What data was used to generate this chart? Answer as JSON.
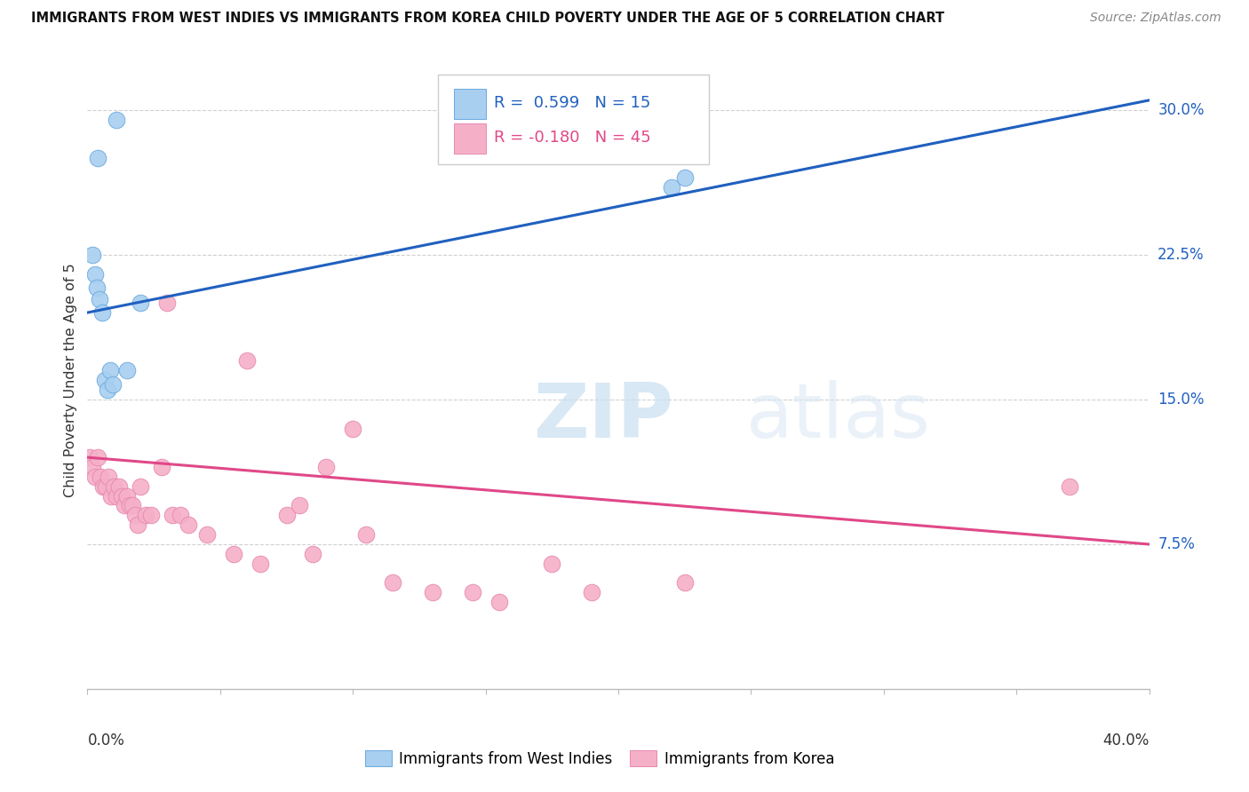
{
  "title": "IMMIGRANTS FROM WEST INDIES VS IMMIGRANTS FROM KOREA CHILD POVERTY UNDER THE AGE OF 5 CORRELATION CHART",
  "source": "Source: ZipAtlas.com",
  "ylabel": "Child Poverty Under the Age of 5",
  "ytick_vals": [
    7.5,
    15.0,
    22.5,
    30.0
  ],
  "ytick_labels": [
    "7.5%",
    "15.0%",
    "22.5%",
    "30.0%"
  ],
  "xlim": [
    0.0,
    40.0
  ],
  "ylim": [
    0.0,
    32.0
  ],
  "blue_label": "Immigrants from West Indies",
  "pink_label": "Immigrants from Korea",
  "blue_R": "0.599",
  "blue_N": "15",
  "pink_R": "-0.180",
  "pink_N": "45",
  "blue_color": "#a8cff0",
  "pink_color": "#f5b0c8",
  "blue_edge_color": "#6aaade",
  "pink_edge_color": "#e888b0",
  "blue_line_color": "#2060c0",
  "pink_line_color": "#e04888",
  "legend_text_blue": "#2060c0",
  "legend_text_pink": "#e04888",
  "blue_x": [
    0.4,
    1.1,
    0.2,
    0.3,
    0.35,
    0.45,
    0.55,
    0.65,
    0.75,
    0.85,
    0.95,
    1.5,
    2.0,
    22.0,
    22.5
  ],
  "blue_y": [
    27.5,
    29.5,
    22.5,
    21.5,
    20.8,
    20.2,
    19.5,
    16.0,
    15.5,
    16.5,
    15.8,
    16.5,
    20.0,
    26.0,
    26.5
  ],
  "pink_x": [
    0.1,
    0.2,
    0.3,
    0.4,
    0.5,
    0.6,
    0.7,
    0.8,
    0.9,
    1.0,
    1.1,
    1.2,
    1.3,
    1.4,
    1.5,
    1.6,
    1.7,
    1.8,
    1.9,
    2.0,
    2.2,
    2.4,
    2.8,
    3.2,
    3.5,
    3.8,
    4.5,
    5.5,
    6.5,
    7.5,
    8.0,
    9.0,
    10.0,
    11.5,
    13.0,
    14.5,
    15.5,
    17.5,
    19.0,
    22.5,
    6.0,
    3.0,
    8.5,
    10.5,
    37.0
  ],
  "pink_y": [
    12.0,
    11.5,
    11.0,
    12.0,
    11.0,
    10.5,
    10.5,
    11.0,
    10.0,
    10.5,
    10.0,
    10.5,
    10.0,
    9.5,
    10.0,
    9.5,
    9.5,
    9.0,
    8.5,
    10.5,
    9.0,
    9.0,
    11.5,
    9.0,
    9.0,
    8.5,
    8.0,
    7.0,
    6.5,
    9.0,
    9.5,
    11.5,
    13.5,
    5.5,
    5.0,
    5.0,
    4.5,
    6.5,
    5.0,
    5.5,
    17.0,
    20.0,
    7.0,
    8.0,
    10.5
  ],
  "blue_line_x0": 0.0,
  "blue_line_y0": 19.5,
  "blue_line_x1": 40.0,
  "blue_line_y1": 30.5,
  "blue_dash_x0": 22.0,
  "blue_dash_x1": 40.0,
  "pink_line_x0": 0.0,
  "pink_line_y0": 12.0,
  "pink_line_x1": 40.0,
  "pink_line_y1": 7.5,
  "watermark": "ZIPatlas",
  "bg_color": "#ffffff",
  "grid_color": "#d0d0d0"
}
